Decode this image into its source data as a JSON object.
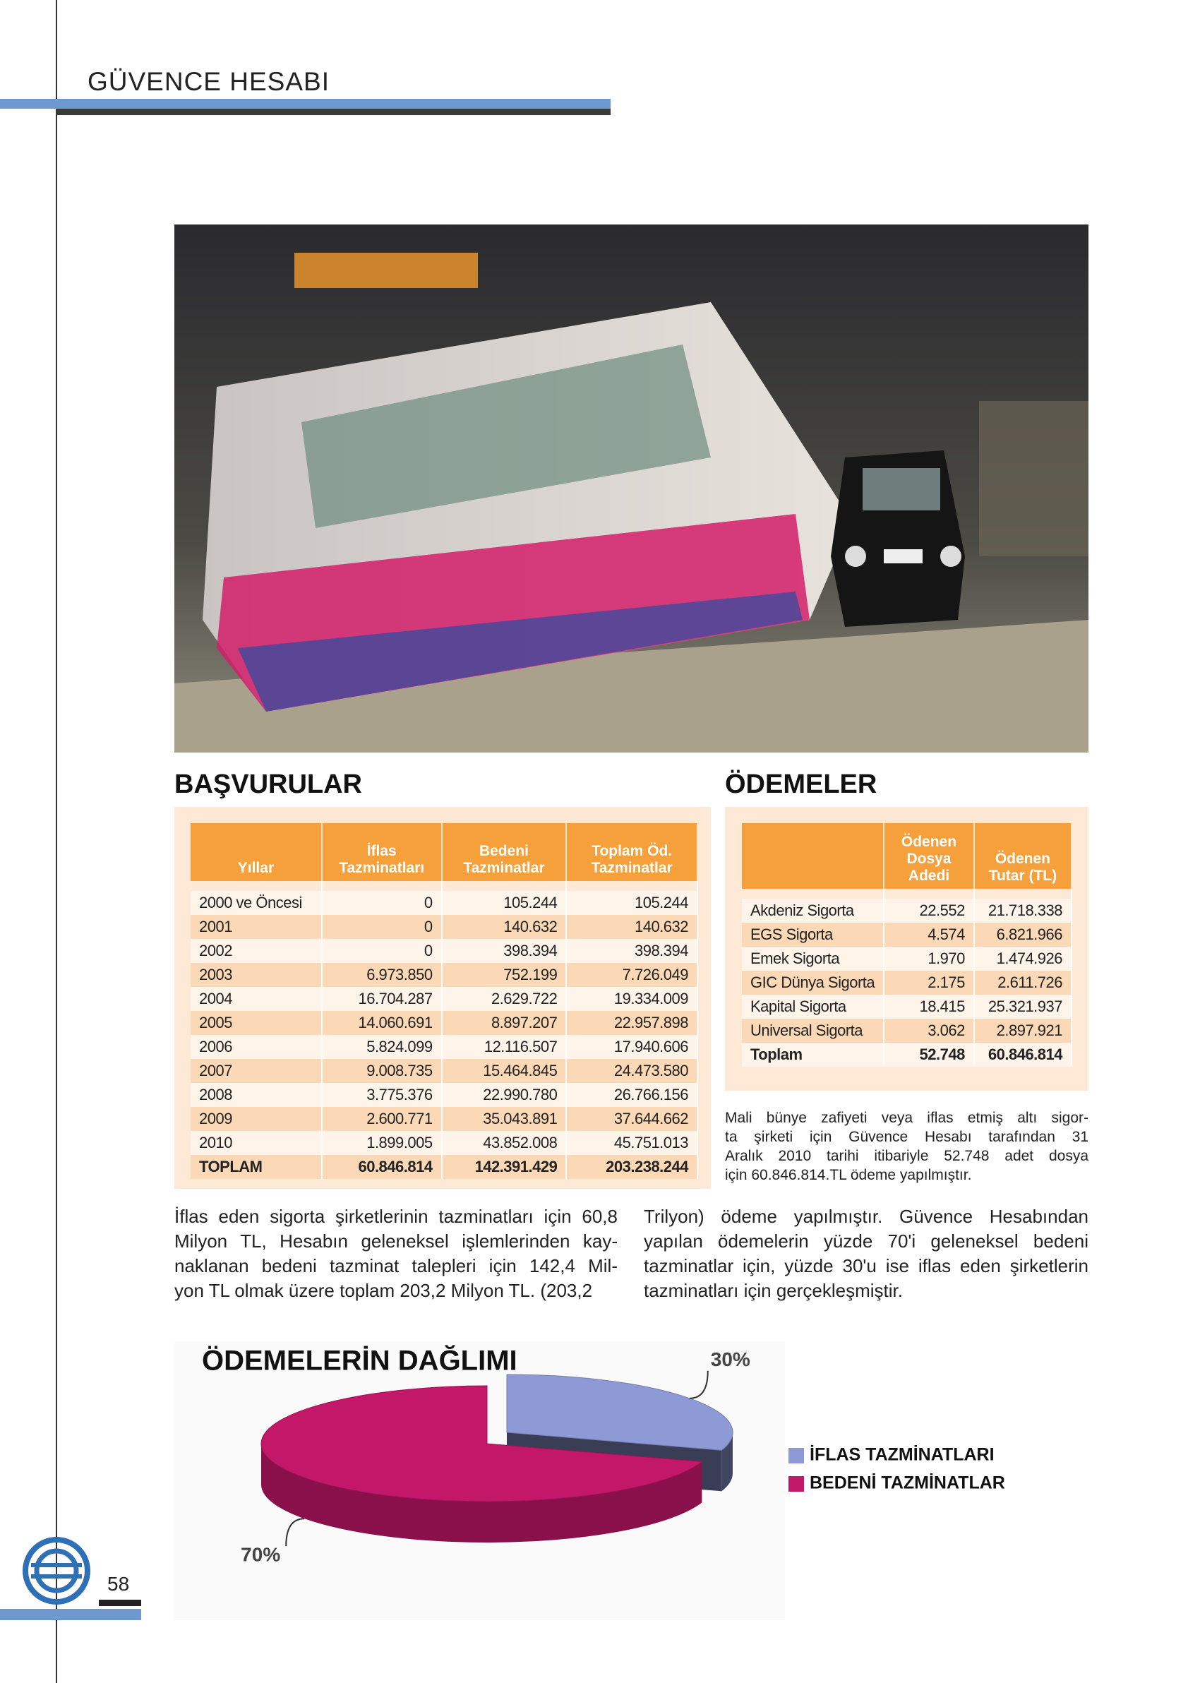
{
  "header": {
    "title": "GÜVENCE HESABI",
    "page_number": "58"
  },
  "basvurular": {
    "title": "BAŞVURULAR",
    "columns": [
      "Yıllar",
      "İflas Tazminatları",
      "Bedeni Tazminatlar",
      "Toplam Öd. Tazminatlar"
    ],
    "rows": [
      [
        "2000 ve Öncesi",
        "0",
        "105.244",
        "105.244"
      ],
      [
        "2001",
        "0",
        "140.632",
        "140.632"
      ],
      [
        "2002",
        "0",
        "398.394",
        "398.394"
      ],
      [
        "2003",
        "6.973.850",
        "752.199",
        "7.726.049"
      ],
      [
        "2004",
        "16.704.287",
        "2.629.722",
        "19.334.009"
      ],
      [
        "2005",
        "14.060.691",
        "8.897.207",
        "22.957.898"
      ],
      [
        "2006",
        "5.824.099",
        "12.116.507",
        "17.940.606"
      ],
      [
        "2007",
        "9.008.735",
        "15.464.845",
        "24.473.580"
      ],
      [
        "2008",
        "3.775.376",
        "22.990.780",
        "26.766.156"
      ],
      [
        "2009",
        "2.600.771",
        "35.043.891",
        "37.644.662"
      ],
      [
        "2010",
        "1.899.005",
        "43.852.008",
        "45.751.013"
      ],
      [
        "TOPLAM",
        "60.846.814",
        "142.391.429",
        "203.238.244"
      ]
    ]
  },
  "odemeler": {
    "title": "ÖDEMELER",
    "columns": [
      "Ödenen Dosya Adedi",
      "Ödenen Tutar (TL)"
    ],
    "rows": [
      [
        "Akdeniz Sigorta",
        "22.552",
        "21.718.338"
      ],
      [
        "EGS Sigorta",
        "4.574",
        "6.821.966"
      ],
      [
        "Emek Sigorta",
        "1.970",
        "1.474.926"
      ],
      [
        "GIC Dünya Sigorta",
        "2.175",
        "2.611.726"
      ],
      [
        "Kapital Sigorta",
        "18.415",
        "25.321.937"
      ],
      [
        "Universal Sigorta",
        "3.062",
        "2.897.921"
      ],
      [
        "Toplam",
        "52.748",
        "60.846.814"
      ]
    ]
  },
  "note": {
    "lines": [
      "Mali bünye zafiyeti veya iflas etmiş altı sigor-",
      "ta şirketi için Güvence Hesabı tarafından 31",
      "Aralık 2010 tarihi itibariyle 52.748 adet dosya",
      "için 60.846.814.TL ödeme yapılmıştır."
    ]
  },
  "body": {
    "columns": [
      [
        "İflas eden sigorta şirketlerinin tazminatları için 60,8",
        "Milyon TL, Hesabın geleneksel işlemlerinden kay-",
        "naklanan bedeni tazminat talepleri için 142,4 Mil-",
        "yon TL olmak üzere toplam 203,2 Milyon TL. (203,2"
      ],
      [
        "Trilyon) ödeme yapılmıştır. Güvence Hesabından",
        "yapılan ödemelerin yüzde 70'i geleneksel bedeni",
        "tazminatlar için, yüzde 30'u ise iflas eden şirketlerin",
        "tazminatları için gerçekleşmiştir."
      ]
    ]
  },
  "chart_data": {
    "type": "pie",
    "title": "ÖDEMELERİN DAĞLIMI",
    "categories": [
      "İFLAS TAZMİNATLARI",
      "BEDENİ TAZMİNATLAR"
    ],
    "values": [
      30,
      70
    ],
    "value_labels": [
      "30%",
      "70%"
    ],
    "colors": [
      "#8e9ad6",
      "#c3176a"
    ]
  }
}
